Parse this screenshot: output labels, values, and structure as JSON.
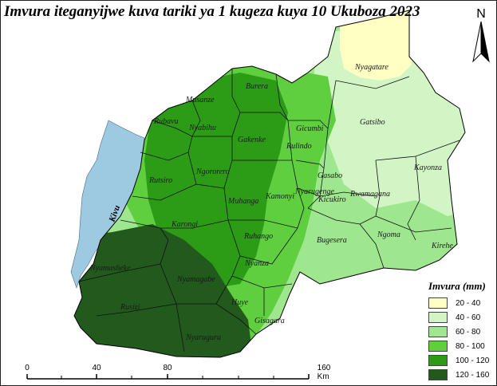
{
  "title": "Imvura iteganyijwe kuva tariki ya 1 kugeza kuya 10 Ukuboza 2023",
  "north_arrow": {
    "letter": "N",
    "icon": "north-arrow-icon"
  },
  "lake": {
    "label": "Kivu",
    "color": "#9ecae1"
  },
  "legend": {
    "title": "Imvura (mm)",
    "classes": [
      {
        "label": "20 - 40",
        "color": "#ffffc3"
      },
      {
        "label": "40 - 60",
        "color": "#d1f5c4"
      },
      {
        "label": "60 - 80",
        "color": "#9fe78f"
      },
      {
        "label": "80 - 100",
        "color": "#5fcf3f"
      },
      {
        "label": "100 - 120",
        "color": "#2c9c16"
      },
      {
        "label": "120 - 160",
        "color": "#215a1c"
      }
    ]
  },
  "scale_bar": {
    "labels": [
      "0",
      "40",
      "80",
      "160 Km"
    ]
  },
  "districts": [
    "Nyagatare",
    "Gatsibo",
    "Kayonza",
    "Kirehe",
    "Ngoma",
    "Rwamagana",
    "Bugesera",
    "Gasabo",
    "Kicukiro",
    "Nyarugenge",
    "Gicumbi",
    "Rulindo",
    "Burera",
    "Musanze",
    "Nyabihu",
    "Rubavu",
    "Gakenke",
    "Ngororero",
    "Rutsiro",
    "Muhanga",
    "Kamonyi",
    "Karongi",
    "Ruhango",
    "Nyanza",
    "Nyamasheke",
    "Nyamagabe",
    "Huye",
    "Gisagara",
    "Rusizi",
    "Nyaruguru"
  ]
}
